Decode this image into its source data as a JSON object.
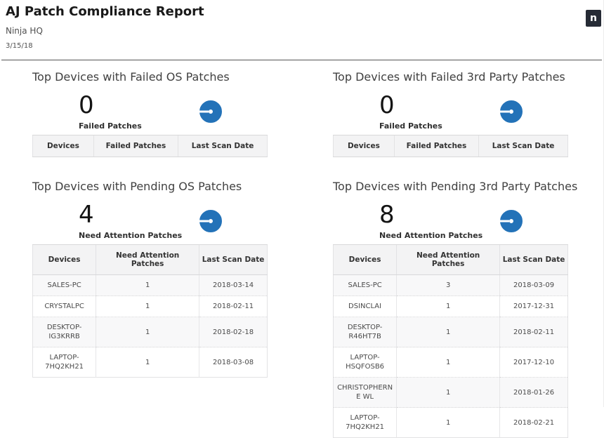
{
  "header": {
    "title": "AJ Patch Compliance Report",
    "org": "Ninja HQ",
    "date": "3/15/18",
    "logo_letter": "n"
  },
  "colors": {
    "accent_blue": "#2372b8",
    "logo_background": "#262b35"
  },
  "sections": [
    {
      "id": "failed-os-patches",
      "title": "Top Devices with Failed OS Patches",
      "stat_value": "0",
      "stat_label": "Failed Patches",
      "donut": {
        "type": "donut",
        "filled_percent": 100,
        "color": "#2372b8"
      },
      "columns": [
        "Devices",
        "Failed Patches",
        "Last Scan Date"
      ],
      "rows": []
    },
    {
      "id": "failed-3rd-party-patches",
      "title": "Top Devices with Failed 3rd Party Patches",
      "stat_value": "0",
      "stat_label": "Failed Patches",
      "donut": {
        "type": "donut",
        "filled_percent": 100,
        "color": "#2372b8"
      },
      "columns": [
        "Devices",
        "Failed Patches",
        "Last Scan Date"
      ],
      "rows": []
    },
    {
      "id": "pending-os-patches",
      "title": "Top Devices with Pending OS Patches",
      "stat_value": "4",
      "stat_label": "Need Attention Patches",
      "donut": {
        "type": "donut",
        "filled_percent": 100,
        "color": "#2372b8"
      },
      "columns": [
        "Devices",
        "Need Attention Patches",
        "Last Scan Date"
      ],
      "rows": [
        [
          "SALES-PC",
          "1",
          "2018-03-14"
        ],
        [
          "CRYSTALPC",
          "1",
          "2018-02-11"
        ],
        [
          "DESKTOP-IG3KRRB",
          "1",
          "2018-02-18"
        ],
        [
          "LAPTOP-7HQ2KH21",
          "1",
          "2018-03-08"
        ]
      ]
    },
    {
      "id": "pending-3rd-party-patches",
      "title": "Top Devices with Pending 3rd Party Patches",
      "stat_value": "8",
      "stat_label": "Need Attention Patches",
      "donut": {
        "type": "donut",
        "filled_percent": 100,
        "color": "#2372b8"
      },
      "columns": [
        "Devices",
        "Need Attention Patches",
        "Last Scan Date"
      ],
      "rows": [
        [
          "SALES-PC",
          "3",
          "2018-03-09"
        ],
        [
          "DSINCLAI",
          "1",
          "2017-12-31"
        ],
        [
          "DESKTOP-R46HT7B",
          "1",
          "2018-02-11"
        ],
        [
          "LAPTOP-HSQFOSB6",
          "1",
          "2017-12-10"
        ],
        [
          "CHRISTOPHERNE WL",
          "1",
          "2018-01-26"
        ],
        [
          "LAPTOP-7HQ2KH21",
          "1",
          "2018-02-21"
        ]
      ]
    }
  ]
}
